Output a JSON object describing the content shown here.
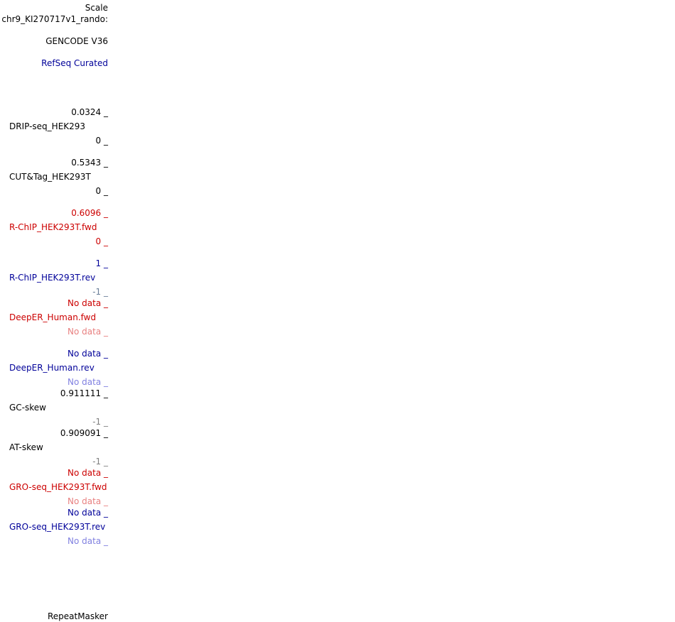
{
  "header": {
    "scale_label": "Scale",
    "chrom_label": "chr9_KI270717v1_rando:"
  },
  "tracks": {
    "gencode": {
      "label": "GENCODE V36"
    },
    "refseq": {
      "label": "RefSeq Curated"
    },
    "drip": {
      "max": "0.0324 _",
      "name": "DRIP-seq_HEK293",
      "min": "0 _"
    },
    "cuttag": {
      "max": "0.5343 _",
      "name": "CUT&Tag_HEK293T",
      "min": "0 _"
    },
    "rchip_fwd": {
      "max": "0.6096 _",
      "name": "R-ChIP_HEK293T.fwd",
      "min": "0 _"
    },
    "rchip_rev": {
      "max": "1 _",
      "name": "R-ChIP_HEK293T.rev",
      "min": "-1 _"
    },
    "deeper_fwd": {
      "max": "No data _",
      "name": "DeepER_Human.fwd",
      "min": "No data _"
    },
    "deeper_rev": {
      "max": "No data _",
      "name": "DeepER_Human.rev",
      "min": "No data _"
    },
    "gc_skew": {
      "max": "0.911111 _",
      "name": "GC-skew",
      "min": "-1 _"
    },
    "at_skew": {
      "max": "0.909091 _",
      "name": "AT-skew",
      "min": "-1 _"
    },
    "gro_fwd": {
      "max": "No data _",
      "name": "GRO-seq_HEK293T.fwd",
      "min": "No data _"
    },
    "gro_rev": {
      "max": "No data _",
      "name": "GRO-seq_HEK293T.rev",
      "min": "No data _"
    },
    "repeatmasker": {
      "label": "RepeatMasker"
    }
  },
  "colors": {
    "black": "#000000",
    "red": "#cc0000",
    "pink": "#e88080",
    "navy": "#000099",
    "light_blue": "#8080e0",
    "slate": "#6b7f99",
    "gray": "#808080"
  }
}
